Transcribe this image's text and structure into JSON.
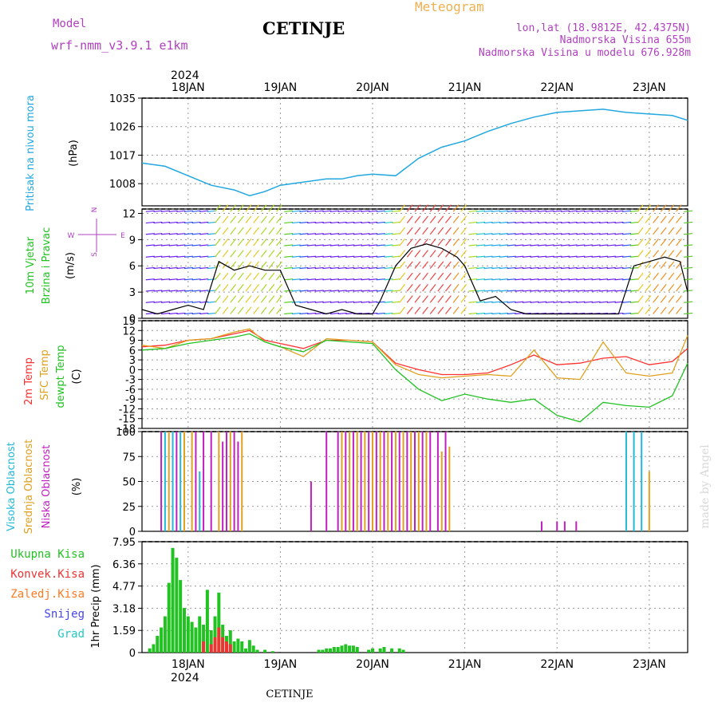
{
  "header": {
    "model_label": "Model",
    "model_name": "wrf-nmm_v3.9.1  e1km",
    "city": "CETINJE",
    "meteogram": "Meteogram",
    "lonlat": "lon,lat (18.9812E, 42.4375N)",
    "altitude": "Nadmorska Visina 655m",
    "model_altitude": "Nadmorska Visina u modelu 676.928m",
    "footer_city": "CETINJE",
    "watermark": "made by Angel"
  },
  "time_axis": {
    "top_year": "2024",
    "bottom_year": "2024",
    "days": [
      "18JAN",
      "19JAN",
      "20JAN",
      "21JAN",
      "22JAN",
      "23JAN"
    ],
    "range_hours": [
      -12,
      130
    ]
  },
  "colors": {
    "pressure": "#22a8e0",
    "temp2m": "#ff3030",
    "sfc_temp": "#e0a020",
    "dewpt": "#22c222",
    "high_cloud": "#22b8d8",
    "mid_cloud": "#e0a020",
    "low_cloud": "#c020c0",
    "total_precip": "#22c222",
    "conv_precip": "#ee3333",
    "frz_precip": "#ff7a20",
    "snow": "#4444ee",
    "graupel": "#22c8c8",
    "header_purple": "#b040c0",
    "header_orange": "#f0b050"
  },
  "panel_labels": {
    "pressure": [
      "Pritisak na nivou mora",
      "(hPa)"
    ],
    "wind": [
      "10m Vjetar",
      "Brzina i Pravac",
      "(m/s)"
    ],
    "compass": [
      "N",
      "S",
      "W",
      "E"
    ],
    "temp": [
      "2m Temp",
      "SFC Temp",
      "dewpt Temp",
      "(C)"
    ],
    "cloud": [
      "Visoka Oblacnost",
      "Srednja Oblacnost",
      "Niska Oblacnost",
      "(%)"
    ],
    "precip": [
      "Ukupna  Kisa",
      "Konvek.Kisa",
      "Zaledj.Kisa",
      "Snijeg",
      "Grad"
    ],
    "precip_unit": "1hr Precip (mm)"
  },
  "chart_data": [
    {
      "type": "line",
      "panel": "pressure",
      "ylabel": "Pritisak na nivou mora (hPa)",
      "yticks": [
        "1008",
        "1017",
        "1026",
        "1035"
      ],
      "ylim": [
        1001,
        1035
      ],
      "x_hours": [
        -12,
        -6,
        0,
        6,
        12,
        16,
        20,
        24,
        30,
        36,
        40,
        44,
        48,
        54,
        60,
        66,
        72,
        78,
        84,
        90,
        96,
        102,
        108,
        114,
        120,
        126,
        130
      ],
      "series": [
        {
          "values": [
            1014.5,
            1013.5,
            1010.5,
            1007.5,
            1006,
            1004.2,
            1005.5,
            1007.5,
            1008.5,
            1009.5,
            1009.5,
            1010.5,
            1011,
            1010.5,
            1016,
            1019.5,
            1021.5,
            1024.5,
            1027,
            1029,
            1030.5,
            1031,
            1031.5,
            1030.5,
            1030,
            1029.5,
            1028
          ]
        }
      ]
    },
    {
      "type": "line",
      "panel": "wind",
      "ylabel": "10m Vjetar Brzina i Pravac (m/s)",
      "yticks": [
        "0",
        "3",
        "6",
        "9",
        "12"
      ],
      "ylim": [
        0,
        12.5
      ],
      "x_hours": [
        -12,
        -8,
        -4,
        0,
        4,
        8,
        12,
        16,
        20,
        24,
        28,
        32,
        36,
        40,
        44,
        48,
        50,
        54,
        58,
        62,
        66,
        70,
        72,
        76,
        80,
        84,
        88,
        92,
        96,
        100,
        104,
        108,
        112,
        116,
        120,
        124,
        128,
        130
      ],
      "series": [
        {
          "values": [
            1,
            0.5,
            1,
            1.5,
            1,
            6.5,
            5.5,
            6,
            5.5,
            5.5,
            1.5,
            1,
            0.5,
            1,
            0.5,
            0.5,
            2,
            6,
            8,
            8.5,
            8,
            7,
            6,
            2,
            2.5,
            1,
            0.5,
            0.5,
            0.5,
            0.5,
            0.5,
            0.5,
            0.5,
            6,
            6.5,
            7,
            6.5,
            3
          ]
        }
      ]
    },
    {
      "type": "line",
      "panel": "temperature",
      "ylabel": "(C)",
      "yticks": [
        "-18",
        "-15",
        "-12",
        "-9",
        "-6",
        "-3",
        "0",
        "3",
        "6",
        "9",
        "12",
        "15"
      ],
      "ylim": [
        -18,
        15
      ],
      "x_hours": [
        -12,
        -6,
        0,
        6,
        12,
        16,
        20,
        24,
        30,
        36,
        42,
        48,
        54,
        60,
        66,
        72,
        78,
        84,
        90,
        96,
        102,
        108,
        114,
        120,
        126,
        130
      ],
      "series": [
        {
          "name": "2m Temp",
          "values": [
            7,
            7.5,
            9,
            9.5,
            11,
            12,
            9,
            8,
            6.5,
            9,
            9,
            8.5,
            2,
            0,
            -1.5,
            -1.5,
            -1,
            1.5,
            4.5,
            1.5,
            2,
            3.5,
            4,
            1.5,
            2.5,
            6.5
          ]
        },
        {
          "name": "SFC Temp",
          "values": [
            7.5,
            6.5,
            9,
            9.5,
            11.5,
            12.5,
            8.5,
            7,
            4,
            9.5,
            9,
            8.5,
            1.5,
            -1.5,
            -2.5,
            -2,
            -1.5,
            -2,
            6,
            -2.5,
            -3,
            8.5,
            -1,
            -2,
            -1,
            10.5
          ]
        },
        {
          "name": "dewpt Temp",
          "values": [
            6,
            6.5,
            8,
            9,
            10,
            11,
            8.5,
            7,
            5.5,
            9,
            8.5,
            8,
            0,
            -6,
            -9.5,
            -7.5,
            -9,
            -10,
            -9,
            -14,
            -16,
            -10,
            -11,
            -11.5,
            -8,
            2
          ]
        }
      ]
    },
    {
      "type": "bar",
      "panel": "cloud",
      "ylabel": "(%)",
      "yticks": [
        "0",
        "25",
        "50",
        "75",
        "100"
      ],
      "ylim": [
        0,
        100
      ],
      "series": [
        {
          "name": "Visoka Oblacnost",
          "hours": [
            -6,
            -4,
            -2,
            3,
            114,
            116,
            118
          ],
          "values": [
            100,
            100,
            100,
            60,
            100,
            100,
            100
          ]
        },
        {
          "name": "Srednja Oblacnost",
          "hours": [
            -5,
            -1,
            1,
            8,
            11,
            14,
            40,
            42,
            44,
            46,
            48,
            50,
            52,
            54,
            56,
            58,
            60,
            62,
            66,
            68,
            120
          ],
          "values": [
            100,
            100,
            100,
            100,
            100,
            100,
            100,
            100,
            100,
            100,
            100,
            100,
            100,
            100,
            100,
            100,
            100,
            100,
            80,
            85,
            60
          ]
        },
        {
          "name": "Niska Oblacnost",
          "hours": [
            -7,
            -3,
            2,
            4,
            6,
            9,
            10,
            12,
            13,
            32,
            36,
            39,
            41,
            43,
            45,
            47,
            49,
            51,
            53,
            55,
            57,
            59,
            61,
            63,
            65,
            67,
            92,
            96,
            98,
            101
          ],
          "values": [
            100,
            100,
            100,
            100,
            100,
            90,
            100,
            100,
            90,
            50,
            100,
            100,
            100,
            100,
            100,
            100,
            100,
            100,
            100,
            100,
            100,
            100,
            100,
            100,
            100,
            100,
            10,
            10,
            10,
            10
          ]
        }
      ]
    },
    {
      "type": "bar",
      "panel": "precip",
      "ylabel": "1hr Precip (mm)",
      "yticks": [
        "0",
        "1.59",
        "3.18",
        "4.77",
        "6.36",
        "7.95"
      ],
      "ylim": [
        0,
        7.95
      ],
      "series": [
        {
          "name": "Ukupna  Kisa",
          "hours": [
            -10,
            -9,
            -8,
            -7,
            -6,
            -5,
            -4,
            -3,
            -2,
            -1,
            0,
            1,
            2,
            3,
            4,
            5,
            6,
            7,
            8,
            9,
            10,
            11,
            12,
            13,
            14,
            15,
            16,
            17,
            18,
            20,
            22,
            34,
            35,
            36,
            37,
            38,
            39,
            40,
            41,
            42,
            43,
            44,
            47,
            48,
            50,
            51,
            53,
            55,
            56
          ],
          "values": [
            0.3,
            0.6,
            1.2,
            1.8,
            2.6,
            5.0,
            7.5,
            6.8,
            5.2,
            3.2,
            2.6,
            2.2,
            1.8,
            2.6,
            2.0,
            4.5,
            1.6,
            2.6,
            4.3,
            2.0,
            1.2,
            1.6,
            0.8,
            1.0,
            0.8,
            0.3,
            0.9,
            0.5,
            0.2,
            0.2,
            0.1,
            0.2,
            0.2,
            0.3,
            0.3,
            0.4,
            0.4,
            0.5,
            0.6,
            0.5,
            0.5,
            0.4,
            0.2,
            0.3,
            0.3,
            0.4,
            0.3,
            0.3,
            0.2
          ]
        },
        {
          "name": "Konvek.Kisa",
          "hours": [
            4,
            6,
            7,
            8,
            9,
            10,
            11
          ],
          "values": [
            0.8,
            0.6,
            1.1,
            1.8,
            1.1,
            0.8,
            0.6
          ]
        }
      ]
    }
  ]
}
